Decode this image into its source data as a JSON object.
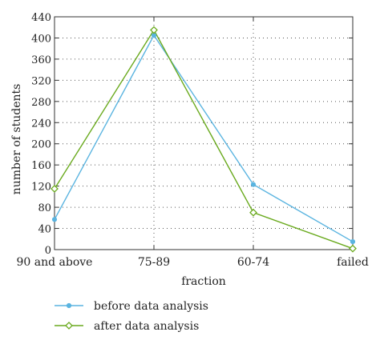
{
  "chart_data": {
    "type": "line",
    "categories": [
      "90 and above",
      "75-89",
      "60-74",
      "failed"
    ],
    "series": [
      {
        "name": "before data analysis",
        "values": [
          57,
          405,
          123,
          15
        ],
        "color": "#5ab4e0",
        "marker": "dot"
      },
      {
        "name": "after data analysis",
        "values": [
          115,
          415,
          70,
          2
        ],
        "color": "#6aaa1e",
        "marker": "diamond"
      }
    ],
    "xlabel": "fraction",
    "ylabel": "number of students",
    "ylim": [
      0,
      440
    ],
    "yticks": [
      0,
      40,
      80,
      120,
      160,
      200,
      240,
      280,
      320,
      360,
      400,
      440
    ],
    "grid": true,
    "legend_position": "bottom-left"
  }
}
